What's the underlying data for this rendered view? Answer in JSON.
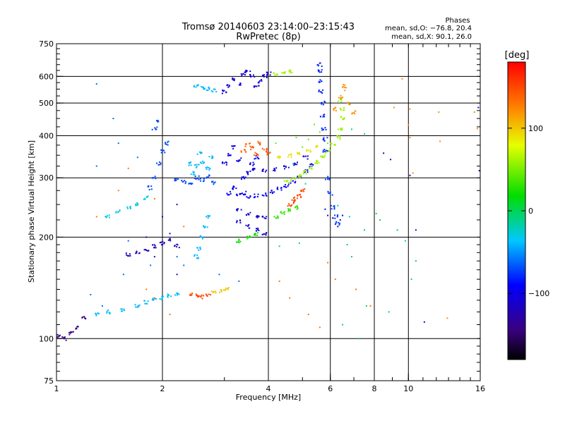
{
  "chart_data": {
    "type": "scatter",
    "title": "Tromsø 20140603 23:14:00–23:15:43",
    "subtitle": "RwPretec (8p)",
    "xlabel": "Frequency [MHz]",
    "ylabel": "Stationary phase Virtual Height [km]",
    "x_scale": "log",
    "y_scale": "log",
    "xlim": [
      1,
      16
    ],
    "ylim": [
      75,
      750
    ],
    "x_ticks": [
      1,
      2,
      4,
      6,
      8,
      10,
      16
    ],
    "x_tick_labels": [
      "1",
      "2",
      "4",
      "6",
      "8",
      "10",
      "16"
    ],
    "y_ticks": [
      75,
      100,
      200,
      300,
      400,
      500,
      600,
      750
    ],
    "y_tick_labels": [
      "75",
      "100",
      "200",
      "300",
      "400",
      "500",
      "600",
      "750"
    ],
    "grid": true,
    "stats": {
      "heading": "Phases",
      "line_o": "mean, sd,O: −76.8, 20.4",
      "line_x": "mean, sd,X:  90.1, 26.0"
    },
    "colorbar": {
      "label": "[deg]",
      "range": [
        -180,
        180
      ],
      "ticks": [
        100,
        0,
        -100
      ],
      "tick_labels": [
        "100",
        "0",
        "−100"
      ]
    },
    "traces": [
      {
        "phase": -140,
        "points": [
          [
            1.02,
            102
          ],
          [
            1.05,
            100
          ],
          [
            1.1,
            104
          ],
          [
            1.15,
            108
          ],
          [
            1.2,
            115
          ]
        ]
      },
      {
        "phase": -40,
        "points": [
          [
            1.3,
            118
          ],
          [
            1.4,
            120
          ],
          [
            1.55,
            122
          ],
          [
            1.7,
            125
          ],
          [
            1.8,
            128
          ],
          [
            1.9,
            130
          ],
          [
            2.0,
            132
          ],
          [
            2.1,
            134
          ],
          [
            2.2,
            136
          ]
        ]
      },
      {
        "phase": 150,
        "points": [
          [
            2.4,
            136
          ],
          [
            2.5,
            134
          ],
          [
            2.6,
            133
          ],
          [
            2.7,
            135
          ]
        ]
      },
      {
        "phase": 100,
        "points": [
          [
            2.8,
            137
          ],
          [
            2.95,
            138
          ],
          [
            3.05,
            140
          ]
        ]
      },
      {
        "phase": -120,
        "points": [
          [
            1.6,
            178
          ],
          [
            1.7,
            180
          ],
          [
            1.8,
            183
          ],
          [
            1.9,
            188
          ],
          [
            2.0,
            192
          ],
          [
            2.1,
            196
          ],
          [
            2.2,
            188
          ]
        ]
      },
      {
        "phase": -40,
        "points": [
          [
            2.5,
            175
          ],
          [
            2.55,
            185
          ],
          [
            2.6,
            200
          ],
          [
            2.65,
            215
          ],
          [
            2.7,
            230
          ]
        ]
      },
      {
        "phase": -30,
        "points": [
          [
            1.4,
            230
          ],
          [
            1.5,
            238
          ],
          [
            1.6,
            245
          ],
          [
            1.7,
            250
          ],
          [
            1.8,
            262
          ]
        ]
      },
      {
        "phase": -70,
        "points": [
          [
            1.85,
            280
          ],
          [
            1.9,
            300
          ],
          [
            1.95,
            330
          ],
          [
            2.0,
            360
          ],
          [
            2.05,
            380
          ],
          [
            1.9,
            420
          ],
          [
            1.95,
            440
          ]
        ]
      },
      {
        "phase": -70,
        "points": [
          [
            2.2,
            295
          ],
          [
            2.3,
            292
          ],
          [
            2.4,
            290
          ],
          [
            2.5,
            300
          ],
          [
            2.6,
            296
          ],
          [
            2.7,
            302
          ],
          [
            2.8,
            290
          ]
        ]
      },
      {
        "phase": -40,
        "points": [
          [
            2.4,
            330
          ],
          [
            2.5,
            325
          ],
          [
            2.6,
            335
          ],
          [
            2.7,
            320
          ],
          [
            2.75,
            345
          ],
          [
            2.55,
            355
          ],
          [
            2.45,
            310
          ]
        ]
      },
      {
        "phase": -100,
        "points": [
          [
            3.0,
            330
          ],
          [
            3.1,
            350
          ],
          [
            3.2,
            370
          ],
          [
            3.3,
            340
          ],
          [
            3.4,
            300
          ],
          [
            3.5,
            310
          ],
          [
            3.6,
            330
          ],
          [
            3.7,
            345
          ],
          [
            3.2,
            280
          ],
          [
            3.4,
            270
          ]
        ]
      },
      {
        "phase": -95,
        "points": [
          [
            3.1,
            270
          ],
          [
            3.3,
            266
          ],
          [
            3.5,
            264
          ],
          [
            3.7,
            265
          ],
          [
            3.9,
            268
          ],
          [
            4.1,
            272
          ],
          [
            4.3,
            278
          ],
          [
            4.5,
            284
          ],
          [
            4.7,
            292
          ],
          [
            4.9,
            302
          ],
          [
            5.1,
            314
          ],
          [
            5.3,
            326
          ]
        ]
      },
      {
        "phase": -110,
        "points": [
          [
            3.3,
            240
          ],
          [
            3.5,
            235
          ],
          [
            3.7,
            230
          ],
          [
            3.9,
            228
          ],
          [
            3.5,
            215
          ],
          [
            3.7,
            210
          ],
          [
            3.9,
            205
          ],
          [
            3.3,
            222
          ]
        ]
      },
      {
        "phase": -110,
        "points": [
          [
            3.6,
            320
          ],
          [
            3.9,
            315
          ],
          [
            4.2,
            318
          ],
          [
            4.5,
            322
          ],
          [
            4.8,
            330
          ],
          [
            5.1,
            345
          ]
        ]
      },
      {
        "phase": 140,
        "points": [
          [
            3.4,
            360
          ],
          [
            3.5,
            375
          ],
          [
            3.6,
            368
          ],
          [
            3.7,
            352
          ],
          [
            3.8,
            380
          ],
          [
            3.9,
            362
          ],
          [
            4.0,
            355
          ]
        ]
      },
      {
        "phase": 90,
        "points": [
          [
            4.3,
            345
          ],
          [
            4.6,
            350
          ],
          [
            4.9,
            355
          ],
          [
            5.2,
            360
          ],
          [
            5.5,
            370
          ]
        ]
      },
      {
        "phase": 60,
        "points": [
          [
            4.5,
            293
          ],
          [
            4.7,
            297
          ],
          [
            4.9,
            303
          ],
          [
            5.1,
            312
          ],
          [
            5.3,
            322
          ],
          [
            5.5,
            333
          ],
          [
            5.7,
            345
          ],
          [
            5.9,
            358
          ],
          [
            6.1,
            375
          ],
          [
            6.3,
            395
          ],
          [
            6.4,
            420
          ],
          [
            6.5,
            450
          ],
          [
            6.5,
            480
          ],
          [
            6.4,
            510
          ]
        ]
      },
      {
        "phase": -80,
        "points": [
          [
            5.6,
            650
          ],
          [
            5.6,
            620
          ],
          [
            5.6,
            580
          ],
          [
            5.65,
            540
          ],
          [
            5.7,
            500
          ],
          [
            5.7,
            460
          ],
          [
            5.75,
            420
          ],
          [
            5.8,
            390
          ]
        ]
      },
      {
        "phase": 150,
        "points": [
          [
            4.6,
            250
          ],
          [
            4.7,
            255
          ],
          [
            4.8,
            260
          ],
          [
            4.9,
            265
          ],
          [
            5.0,
            275
          ]
        ]
      },
      {
        "phase": 30,
        "points": [
          [
            4.2,
            230
          ],
          [
            4.4,
            235
          ],
          [
            4.6,
            240
          ],
          [
            4.8,
            245
          ]
        ]
      },
      {
        "phase": -110,
        "points": [
          [
            3.0,
            540
          ],
          [
            3.1,
            560
          ],
          [
            3.2,
            590
          ],
          [
            3.3,
            570
          ],
          [
            3.4,
            610
          ],
          [
            3.5,
            620
          ],
          [
            3.6,
            600
          ],
          [
            3.7,
            560
          ],
          [
            3.8,
            580
          ],
          [
            3.9,
            600
          ],
          [
            4.0,
            610
          ]
        ]
      },
      {
        "phase": -40,
        "points": [
          [
            2.5,
            560
          ],
          [
            2.6,
            555
          ],
          [
            2.7,
            550
          ],
          [
            2.8,
            545
          ]
        ]
      },
      {
        "phase": 60,
        "points": [
          [
            4.2,
            610
          ],
          [
            4.4,
            615
          ],
          [
            4.6,
            620
          ]
        ]
      },
      {
        "phase": -75,
        "points": [
          [
            5.8,
            360
          ],
          [
            5.9,
            300
          ],
          [
            6.0,
            270
          ],
          [
            6.1,
            245
          ],
          [
            6.2,
            230
          ],
          [
            6.3,
            220
          ]
        ]
      },
      {
        "phase": 120,
        "points": [
          [
            6.2,
            480
          ],
          [
            6.4,
            520
          ],
          [
            6.6,
            560
          ],
          [
            6.8,
            500
          ],
          [
            7.0,
            470
          ]
        ]
      },
      {
        "phase": 20,
        "points": [
          [
            3.3,
            195
          ],
          [
            3.5,
            200
          ],
          [
            3.7,
            205
          ]
        ]
      }
    ],
    "scatter_points": [
      {
        "phase": -60,
        "points": [
          [
            1.3,
            570
          ],
          [
            1.3,
            325
          ],
          [
            1.45,
            450
          ],
          [
            1.5,
            380
          ],
          [
            1.7,
            345
          ],
          [
            1.85,
            165
          ],
          [
            2.3,
            165
          ],
          [
            2.9,
            155
          ],
          [
            3.3,
            148
          ],
          [
            2.2,
            175
          ],
          [
            1.6,
            195
          ],
          [
            1.55,
            155
          ],
          [
            1.25,
            135
          ],
          [
            1.35,
            125
          ]
        ]
      },
      {
        "phase": 130,
        "points": [
          [
            1.3,
            230
          ],
          [
            1.5,
            275
          ],
          [
            1.9,
            260
          ],
          [
            2.3,
            215
          ],
          [
            1.8,
            140
          ],
          [
            2.1,
            118
          ],
          [
            1.9,
            132
          ],
          [
            1.6,
            320
          ],
          [
            4.3,
            148
          ],
          [
            4.6,
            132
          ],
          [
            5.2,
            118
          ],
          [
            5.6,
            108
          ],
          [
            6.2,
            150
          ],
          [
            5.9,
            168
          ],
          [
            7.8,
            125
          ],
          [
            7.1,
            140
          ]
        ]
      },
      {
        "phase": -120,
        "points": [
          [
            2.2,
            250
          ],
          [
            2.1,
            205
          ],
          [
            2.0,
            190
          ],
          [
            1.9,
            175
          ],
          [
            2.2,
            155
          ],
          [
            1.8,
            200
          ],
          [
            2.0,
            230
          ]
        ]
      },
      {
        "phase": 0,
        "points": [
          [
            6.7,
            190
          ],
          [
            6.9,
            175
          ],
          [
            7.5,
            210
          ],
          [
            8.1,
            235
          ],
          [
            9.3,
            210
          ],
          [
            9.8,
            195
          ],
          [
            10.2,
            150
          ],
          [
            10.5,
            170
          ],
          [
            8.3,
            225
          ],
          [
            8.8,
            120
          ],
          [
            7.2,
            100
          ],
          [
            6.5,
            110
          ],
          [
            7.6,
            125
          ]
        ]
      },
      {
        "phase": 120,
        "points": [
          [
            10.1,
            480
          ],
          [
            10.0,
            430
          ],
          [
            10.1,
            395
          ],
          [
            9.6,
            590
          ],
          [
            12.2,
            470
          ],
          [
            12.3,
            385
          ],
          [
            15.4,
            470
          ],
          [
            15.7,
            420
          ],
          [
            10.3,
            310
          ],
          [
            12.9,
            115
          ],
          [
            9.1,
            485
          ],
          [
            6.6,
            545
          ]
        ]
      },
      {
        "phase": -110,
        "points": [
          [
            8.5,
            355
          ],
          [
            8.9,
            340
          ],
          [
            10.1,
            305
          ],
          [
            10.5,
            210
          ],
          [
            11.1,
            112
          ],
          [
            15.8,
            485
          ],
          [
            15.9,
            315
          ],
          [
            6.4,
            225
          ],
          [
            6.5,
            232
          ],
          [
            6.3,
            215
          ],
          [
            5.8,
            242
          ],
          [
            5.9,
            232
          ],
          [
            6.1,
            228
          ]
        ]
      },
      {
        "phase": -20,
        "points": [
          [
            4.7,
            330
          ],
          [
            5.1,
            288
          ],
          [
            6.8,
            230
          ],
          [
            7.5,
            405
          ],
          [
            6.9,
            418
          ],
          [
            6.3,
            248
          ],
          [
            4.3,
            188
          ],
          [
            4.9,
            192
          ]
        ]
      },
      {
        "phase": 45,
        "points": [
          [
            5.2,
            390
          ],
          [
            5.6,
            410
          ],
          [
            5.9,
            380
          ],
          [
            5.0,
            370
          ],
          [
            4.8,
            395
          ],
          [
            4.2,
            380
          ],
          [
            5.4,
            432
          ]
        ]
      }
    ]
  }
}
